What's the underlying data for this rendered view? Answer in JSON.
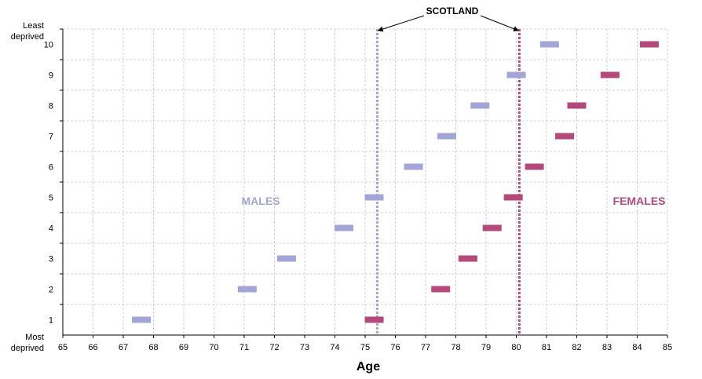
{
  "chart_data": {
    "type": "scatter",
    "xlabel": "Age",
    "xlim": [
      65,
      85
    ],
    "x_ticks": [
      65,
      66,
      67,
      68,
      69,
      70,
      71,
      72,
      73,
      74,
      75,
      76,
      77,
      78,
      79,
      80,
      81,
      82,
      83,
      84,
      85
    ],
    "ylim": [
      0.5,
      10.5
    ],
    "y_ticks": [
      1,
      2,
      3,
      4,
      5,
      6,
      7,
      8,
      9,
      10
    ],
    "y_top_label_line1": "Least",
    "y_top_label_line2": "deprived",
    "y_bottom_label_line1": "Most",
    "y_bottom_label_line2": "deprived",
    "grid": true,
    "annotation": {
      "text": "SCOTLAND"
    },
    "series": [
      {
        "name": "MALES",
        "color": "#a3a5d6",
        "points": [
          {
            "x": 67.6,
            "y": 1
          },
          {
            "x": 71.1,
            "y": 2
          },
          {
            "x": 72.4,
            "y": 3
          },
          {
            "x": 74.3,
            "y": 4
          },
          {
            "x": 75.3,
            "y": 5
          },
          {
            "x": 76.6,
            "y": 6
          },
          {
            "x": 77.7,
            "y": 7
          },
          {
            "x": 78.8,
            "y": 8
          },
          {
            "x": 80.0,
            "y": 9
          },
          {
            "x": 81.1,
            "y": 10
          }
        ],
        "reference_line": 75.4
      },
      {
        "name": "FEMALES",
        "color": "#b34a7b",
        "points": [
          {
            "x": 75.3,
            "y": 1
          },
          {
            "x": 77.5,
            "y": 2
          },
          {
            "x": 78.4,
            "y": 3
          },
          {
            "x": 79.2,
            "y": 4
          },
          {
            "x": 79.9,
            "y": 5
          },
          {
            "x": 80.6,
            "y": 6
          },
          {
            "x": 81.6,
            "y": 7
          },
          {
            "x": 82.0,
            "y": 8
          },
          {
            "x": 83.1,
            "y": 9
          },
          {
            "x": 84.4,
            "y": 10
          }
        ],
        "reference_line": 80.1
      }
    ]
  }
}
